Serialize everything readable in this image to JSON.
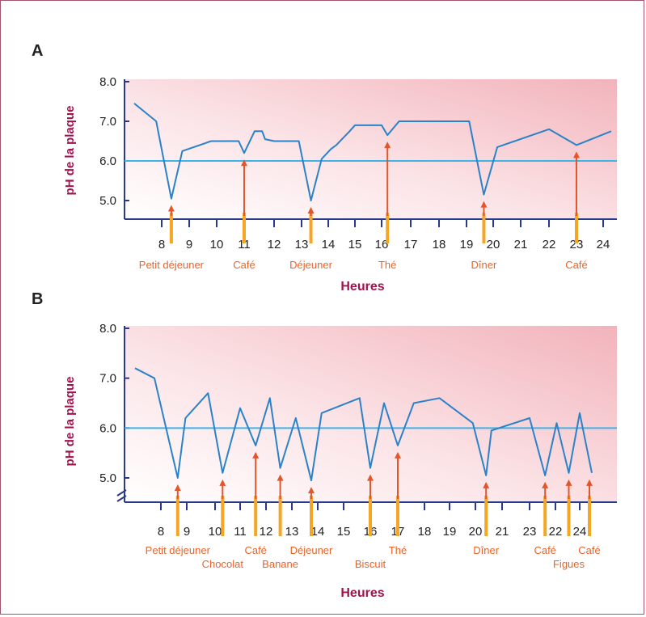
{
  "chart_data": [
    {
      "type": "line",
      "panel_label": "A",
      "ylabel": "pH de la plaque",
      "xlabel": "Heures",
      "ylim": [
        4.5,
        8.0
      ],
      "y_ticks": [
        "8.0",
        "7.0",
        "6.0",
        "5.0"
      ],
      "threshold": 6.0,
      "x_ticks": [
        "8",
        "9",
        "10",
        "11",
        "12",
        "13",
        "14",
        "15",
        "16",
        "17",
        "18",
        "19",
        "20",
        "21",
        "22",
        "23",
        "24"
      ],
      "series": [
        {
          "x": [
            7.0,
            7.8,
            8.35,
            8.75,
            9.8,
            10.8,
            11.0,
            11.35,
            11.6,
            11.7,
            12.0,
            12.9,
            13.35,
            13.75,
            14.1,
            14.3,
            14.8,
            15.0,
            15.3,
            16.0,
            16.2,
            16.6,
            17.4,
            18.1,
            19.1,
            19.65,
            20.15,
            22.0,
            23.0,
            24.3
          ],
          "y": [
            7.45,
            7.0,
            5.05,
            6.25,
            6.5,
            6.5,
            6.2,
            6.75,
            6.75,
            6.55,
            6.5,
            6.5,
            5.0,
            6.05,
            6.3,
            6.4,
            6.75,
            6.9,
            6.9,
            6.9,
            6.65,
            7.0,
            7.0,
            7.0,
            7.0,
            5.15,
            6.35,
            6.8,
            6.4,
            6.75
          ]
        }
      ],
      "events": [
        {
          "x": 8.35,
          "label": "Petit déjeuner"
        },
        {
          "x": 11.0,
          "label": "Café"
        },
        {
          "x": 13.35,
          "label": "Déjeuner"
        },
        {
          "x": 16.2,
          "label": "Thé"
        },
        {
          "x": 19.65,
          "label": "Dîner"
        },
        {
          "x": 23.0,
          "label": "Café"
        }
      ]
    },
    {
      "type": "line",
      "panel_label": "B",
      "ylabel": "pH de la plaque",
      "xlabel": "Heures",
      "ylim": [
        4.5,
        8.0
      ],
      "y_ticks": [
        "8.0",
        "7.0",
        "6.0",
        "5.0"
      ],
      "threshold": 6.0,
      "x_ticks": [
        "8",
        "9",
        "10",
        "11",
        "12",
        "13",
        "14",
        "15",
        "16",
        "17",
        "18",
        "19",
        "20",
        "21",
        "23",
        "22",
        "24"
      ],
      "series": [
        {
          "x": [
            7.0,
            7.75,
            8.65,
            8.95,
            9.75,
            10.3,
            11.0,
            11.6,
            12.15,
            12.55,
            13.15,
            13.75,
            14.15,
            15.6,
            16.0,
            16.5,
            17.0,
            17.6,
            18.6,
            19.9,
            20.4,
            20.6,
            22.0,
            22.6,
            23.05,
            23.55,
            24.0,
            24.5
          ],
          "y": [
            7.2,
            7.0,
            5.0,
            6.2,
            6.7,
            5.1,
            6.4,
            5.65,
            6.6,
            5.2,
            6.2,
            4.95,
            6.3,
            6.6,
            5.2,
            6.5,
            5.65,
            6.5,
            6.6,
            6.1,
            5.05,
            5.95,
            6.2,
            5.05,
            6.1,
            5.1,
            6.3,
            5.1
          ]
        }
      ],
      "events": [
        {
          "x": 8.65,
          "label": "Petit déjeuner",
          "row": 0
        },
        {
          "x": 10.3,
          "label": "Chocolat",
          "row": 1
        },
        {
          "x": 11.6,
          "label": "Café",
          "row": 0
        },
        {
          "x": 12.55,
          "label": "Banane",
          "row": 1
        },
        {
          "x": 13.75,
          "label": "Déjeuner",
          "row": 0
        },
        {
          "x": 16.0,
          "label": "Biscuit",
          "row": 1
        },
        {
          "x": 17.0,
          "label": "Thé",
          "row": 0
        },
        {
          "x": 20.4,
          "label": "Dîner",
          "row": 0
        },
        {
          "x": 22.6,
          "label": "Café",
          "row": 0
        },
        {
          "x": 23.55,
          "label": "Figues",
          "row": 1
        },
        {
          "x": 24.4,
          "label": "Café",
          "row": 0
        }
      ]
    }
  ]
}
